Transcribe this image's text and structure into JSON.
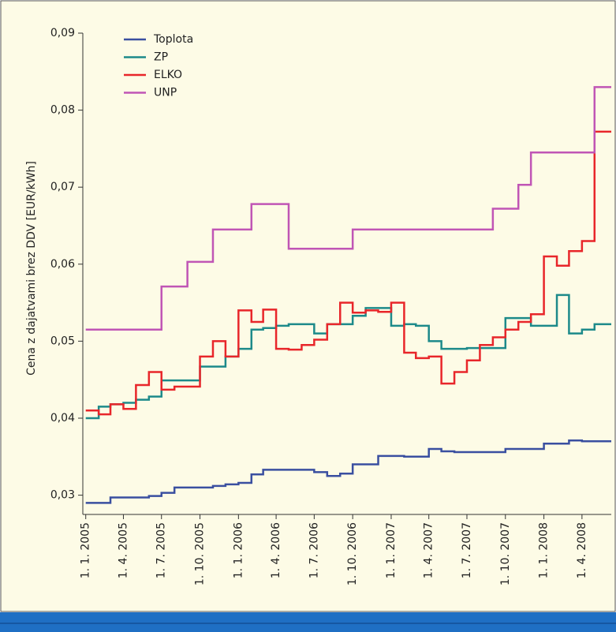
{
  "chart_data": {
    "type": "step",
    "ylabel": "Cena z dajatvami brez DDV [EUR/kWh]",
    "x": [
      "2005-01-01",
      "2005-02-01",
      "2005-03-01",
      "2005-04-01",
      "2005-05-01",
      "2005-06-01",
      "2005-07-01",
      "2005-08-01",
      "2005-09-01",
      "2005-10-01",
      "2005-11-01",
      "2005-12-01",
      "2006-01-01",
      "2006-02-01",
      "2006-03-01",
      "2006-04-01",
      "2006-05-01",
      "2006-06-01",
      "2006-07-01",
      "2006-08-01",
      "2006-09-01",
      "2006-10-01",
      "2006-11-01",
      "2006-12-01",
      "2007-01-01",
      "2007-02-01",
      "2007-03-01",
      "2007-04-01",
      "2007-05-01",
      "2007-06-01",
      "2007-07-01",
      "2007-08-01",
      "2007-09-01",
      "2007-10-01",
      "2007-11-01",
      "2007-12-01",
      "2008-01-01",
      "2008-02-01",
      "2008-03-01",
      "2008-04-01",
      "2008-05-01"
    ],
    "series": [
      {
        "name": "Toplota",
        "color": "#3a4fa0",
        "values": [
          0.029,
          0.029,
          0.0297,
          0.0297,
          0.0297,
          0.0299,
          0.0303,
          0.031,
          0.031,
          0.031,
          0.0312,
          0.0314,
          0.0316,
          0.0327,
          0.0333,
          0.0333,
          0.0333,
          0.0333,
          0.033,
          0.0325,
          0.0328,
          0.034,
          0.034,
          0.0351,
          0.0351,
          0.035,
          0.035,
          0.036,
          0.0357,
          0.0356,
          0.0356,
          0.0356,
          0.0356,
          0.036,
          0.036,
          0.036,
          0.0367,
          0.0367,
          0.0371,
          0.037,
          0.037
        ]
      },
      {
        "name": "ZP",
        "color": "#1d8a8a",
        "values": [
          0.04,
          0.0415,
          0.0418,
          0.042,
          0.0424,
          0.0428,
          0.0449,
          0.0449,
          0.0449,
          0.0467,
          0.0467,
          0.048,
          0.049,
          0.0515,
          0.0517,
          0.052,
          0.0522,
          0.0522,
          0.051,
          0.0522,
          0.0522,
          0.0533,
          0.0543,
          0.0543,
          0.052,
          0.0522,
          0.052,
          0.05,
          0.049,
          0.049,
          0.0491,
          0.0491,
          0.0491,
          0.053,
          0.053,
          0.052,
          0.052,
          0.056,
          0.051,
          0.0515,
          0.0522
        ]
      },
      {
        "name": "ELKO",
        "color": "#e8262a",
        "values": [
          0.041,
          0.0405,
          0.0418,
          0.0412,
          0.0443,
          0.046,
          0.0437,
          0.0441,
          0.0441,
          0.048,
          0.05,
          0.048,
          0.054,
          0.0525,
          0.0541,
          0.049,
          0.0489,
          0.0495,
          0.0502,
          0.0522,
          0.055,
          0.0537,
          0.054,
          0.0538,
          0.055,
          0.0485,
          0.0478,
          0.048,
          0.0445,
          0.046,
          0.0475,
          0.0495,
          0.0505,
          0.0515,
          0.0525,
          0.0535,
          0.061,
          0.0598,
          0.0617,
          0.063,
          0.0772
        ]
      },
      {
        "name": "UNP",
        "color": "#c055b5",
        "values": [
          0.0515,
          0.0515,
          0.0515,
          0.0515,
          0.0515,
          0.0515,
          0.0571,
          0.0571,
          0.0603,
          0.0603,
          0.0645,
          0.0645,
          0.0645,
          0.0678,
          0.0678,
          0.0678,
          0.062,
          0.062,
          0.062,
          0.062,
          0.062,
          0.0645,
          0.0645,
          0.0645,
          0.0645,
          0.0645,
          0.0645,
          0.0645,
          0.0645,
          0.0645,
          0.0645,
          0.0645,
          0.0672,
          0.0672,
          0.0703,
          0.0745,
          0.0745,
          0.0745,
          0.0745,
          0.0745,
          0.083
        ]
      }
    ],
    "xlim": [
      "2004-12-25",
      "2008-06-10"
    ],
    "xticks": [
      {
        "value": "2005-01-01",
        "label": "1. 1. 2005"
      },
      {
        "value": "2005-04-01",
        "label": "1. 4. 2005"
      },
      {
        "value": "2005-07-01",
        "label": "1. 7. 2005"
      },
      {
        "value": "2005-10-01",
        "label": "1. 10. 2005"
      },
      {
        "value": "2006-01-01",
        "label": "1. 1. 2006"
      },
      {
        "value": "2006-04-01",
        "label": "1. 4. 2006"
      },
      {
        "value": "2006-07-01",
        "label": "1. 7. 2006"
      },
      {
        "value": "2006-10-01",
        "label": "1. 10. 2006"
      },
      {
        "value": "2007-01-01",
        "label": "1. 1. 2007"
      },
      {
        "value": "2007-04-01",
        "label": "1. 4. 2007"
      },
      {
        "value": "2007-07-01",
        "label": "1. 7. 2007"
      },
      {
        "value": "2007-10-01",
        "label": "1. 10. 2007"
      },
      {
        "value": "2008-01-01",
        "label": "1. 1. 2008"
      },
      {
        "value": "2008-04-01",
        "label": "1. 4. 2008"
      }
    ],
    "ylim": [
      0.0275,
      0.09
    ],
    "yticks": [
      {
        "value": 0.03,
        "label": "0,03"
      },
      {
        "value": 0.04,
        "label": "0,04"
      },
      {
        "value": 0.05,
        "label": "0,05"
      },
      {
        "value": 0.06,
        "label": "0,06"
      },
      {
        "value": 0.07,
        "label": "0,07"
      },
      {
        "value": 0.08,
        "label": "0,08"
      },
      {
        "value": 0.09,
        "label": "0,09"
      }
    ],
    "legend": "upper left"
  }
}
